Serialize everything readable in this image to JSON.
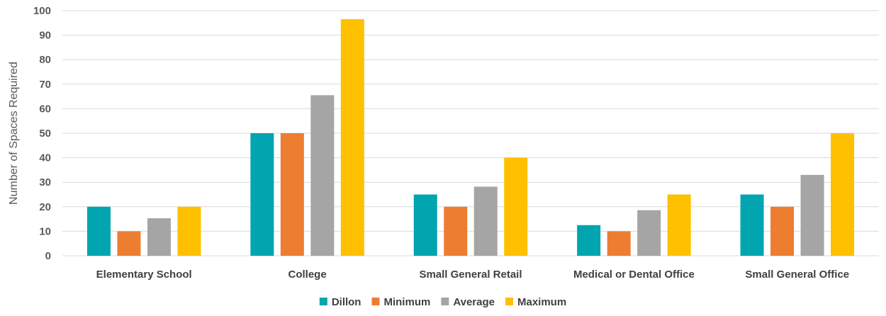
{
  "chart_data": {
    "type": "bar",
    "title": "",
    "xlabel": "",
    "ylabel": "Number of Spaces Required",
    "ylim": [
      0,
      100
    ],
    "yticks": [
      0,
      10,
      20,
      30,
      40,
      50,
      60,
      70,
      80,
      90,
      100
    ],
    "grid": true,
    "legend_position": "bottom",
    "categories": [
      "Elementary School",
      "College",
      "Small General Retail",
      "Medical or Dental Office",
      "Small General Office"
    ],
    "series": [
      {
        "name": "Dillon",
        "color": "#00a5b0",
        "values": [
          20,
          50,
          25,
          12.5,
          25
        ]
      },
      {
        "name": "Minimum",
        "color": "#ed7d31",
        "values": [
          10,
          50,
          20,
          10,
          20
        ]
      },
      {
        "name": "Average",
        "color": "#a5a5a5",
        "values": [
          15.3,
          65.5,
          28.2,
          18.6,
          33
        ]
      },
      {
        "name": "Maximum",
        "color": "#ffc000",
        "values": [
          20,
          96.5,
          40,
          25,
          50
        ]
      }
    ]
  }
}
